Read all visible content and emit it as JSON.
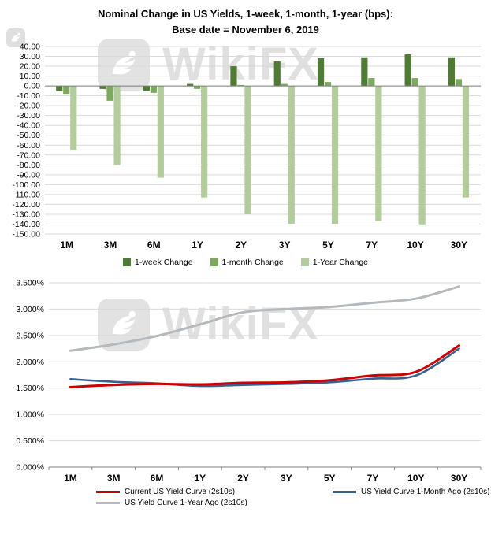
{
  "watermark": {
    "text": "WikiFX"
  },
  "chart_data": [
    {
      "type": "bar",
      "title_line1": "Nominal Change in US Yields, 1-week, 1-month, 1-year (bps):",
      "title_line2": "Base date = November 6, 2019",
      "categories": [
        "1M",
        "3M",
        "6M",
        "1Y",
        "2Y",
        "3Y",
        "5Y",
        "7Y",
        "10Y",
        "30Y"
      ],
      "series": [
        {
          "name": "1-week Change",
          "color": "#4f7b35",
          "values": [
            -5,
            -3,
            -5,
            2,
            20,
            25,
            28,
            29,
            32,
            29
          ]
        },
        {
          "name": "1-month Change",
          "color": "#7ca95e",
          "values": [
            -8,
            -15,
            -7,
            -3,
            1,
            2,
            4,
            8,
            8,
            7
          ]
        },
        {
          "name": "1-Year Change",
          "color": "#b3cc9c",
          "values": [
            -65,
            -80,
            -93,
            -113,
            -130,
            -140,
            -140,
            -137,
            -141,
            -113
          ]
        }
      ],
      "ylim": [
        -150,
        40
      ],
      "ytick": 10,
      "y_format": "0.00",
      "grid": true,
      "legend_position": "bottom"
    },
    {
      "type": "line",
      "categories": [
        "1M",
        "3M",
        "6M",
        "1Y",
        "2Y",
        "3Y",
        "5Y",
        "7Y",
        "10Y",
        "30Y"
      ],
      "series": [
        {
          "name": "Current US Yield Curve (2s10s)",
          "color": "#cc0000",
          "width": 3,
          "values": [
            1.52,
            1.56,
            1.58,
            1.57,
            1.6,
            1.61,
            1.65,
            1.74,
            1.81,
            2.31
          ]
        },
        {
          "name": "US Yield Curve 1-Month Ago (2s10s)",
          "color": "#376092",
          "width": 2.6,
          "values": [
            1.67,
            1.62,
            1.59,
            1.54,
            1.56,
            1.58,
            1.61,
            1.68,
            1.74,
            2.25
          ]
        },
        {
          "name": "US Yield Curve 1-Year Ago (2s10s)",
          "color": "#b3b9bd",
          "width": 3,
          "values": [
            2.21,
            2.33,
            2.49,
            2.71,
            2.94,
            3.0,
            3.04,
            3.12,
            3.2,
            3.43
          ]
        }
      ],
      "ylim": [
        0,
        3.5
      ],
      "ytick": 0.5,
      "y_format": "0.000%",
      "grid": true,
      "legend_position": "bottom"
    }
  ]
}
